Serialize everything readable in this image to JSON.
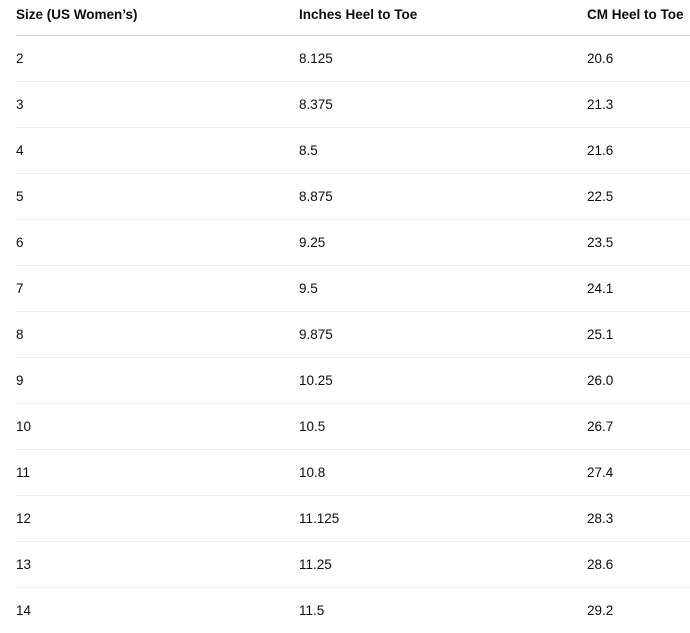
{
  "table": {
    "headers": [
      "Size (US Women’s)",
      "Inches Heel to Toe",
      "CM Heel to Toe"
    ],
    "rows": [
      [
        "2",
        "8.125",
        "20.6"
      ],
      [
        "3",
        "8.375",
        "21.3"
      ],
      [
        "4",
        "8.5",
        "21.6"
      ],
      [
        "5",
        "8.875",
        "22.5"
      ],
      [
        "6",
        "9.25",
        "23.5"
      ],
      [
        "7",
        "9.5",
        "24.1"
      ],
      [
        "8",
        "9.875",
        "25.1"
      ],
      [
        "9",
        "10.25",
        "26.0"
      ],
      [
        "10",
        "10.5",
        "26.7"
      ],
      [
        "11",
        "10.8",
        "27.4"
      ],
      [
        "12",
        "11.125",
        "28.3"
      ],
      [
        "13",
        "11.25",
        "28.6"
      ],
      [
        "14",
        "11.5",
        "29.2"
      ]
    ]
  }
}
